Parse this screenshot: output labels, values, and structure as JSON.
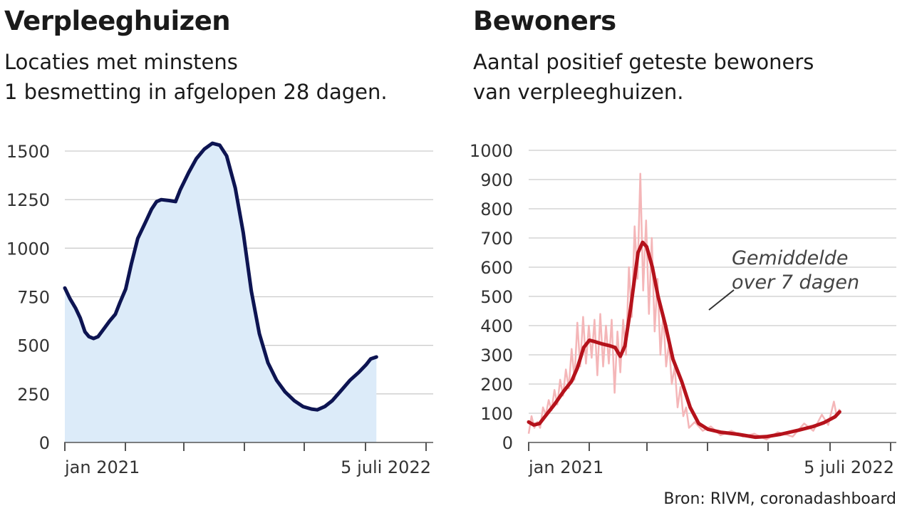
{
  "left": {
    "title": "Verpleeghuizen",
    "subtitle": "Locaties met minstens\n1 besmetting in afgelopen 28 dagen."
  },
  "right": {
    "title": "Bewoners",
    "subtitle": "Aantal positief geteste bewoners\nvan verpleeghuizen."
  },
  "source": "Bron: RIVM, coronadashboard",
  "colors": {
    "left_line": "#0d1452",
    "left_fill": "#dcebf9",
    "right_avg": "#b5121b",
    "right_daily": "#f4b6b8",
    "grid": "#cccccc"
  },
  "chart_data": [
    {
      "type": "area",
      "x_start": "2020-10-01",
      "x_end": "2022-07-05",
      "x_tick_labels": [
        "jan 2021",
        "5 juli 2022"
      ],
      "yticks": [
        0,
        250,
        500,
        750,
        1000,
        1250,
        1500
      ],
      "ylim": [
        0,
        1500
      ],
      "series": [
        {
          "values": [
            [
              "2020-10-01",
              795
            ],
            [
              "2020-10-10",
              740
            ],
            [
              "2020-10-20",
              690
            ],
            [
              "2020-10-28",
              640
            ],
            [
              "2020-11-05",
              570
            ],
            [
              "2020-11-12",
              545
            ],
            [
              "2020-11-20",
              535
            ],
            [
              "2020-11-28",
              545
            ],
            [
              "2020-12-08",
              585
            ],
            [
              "2020-12-18",
              625
            ],
            [
              "2020-12-28",
              660
            ],
            [
              "2021-01-05",
              720
            ],
            [
              "2021-01-15",
              790
            ],
            [
              "2021-01-25",
              920
            ],
            [
              "2021-02-05",
              1050
            ],
            [
              "2021-02-18",
              1130
            ],
            [
              "2021-03-01",
              1200
            ],
            [
              "2021-03-10",
              1240
            ],
            [
              "2021-03-18",
              1250
            ],
            [
              "2021-04-01",
              1245
            ],
            [
              "2021-04-12",
              1240
            ],
            [
              "2021-04-20",
              1300
            ],
            [
              "2021-05-05",
              1390
            ],
            [
              "2021-05-18",
              1460
            ],
            [
              "2021-06-01",
              1510
            ],
            [
              "2021-06-15",
              1540
            ],
            [
              "2021-06-28",
              1530
            ],
            [
              "2021-07-10",
              1475
            ],
            [
              "2021-07-25",
              1310
            ],
            [
              "2021-08-08",
              1080
            ],
            [
              "2021-08-22",
              780
            ],
            [
              "2021-09-05",
              560
            ],
            [
              "2021-09-20",
              410
            ],
            [
              "2021-10-05",
              320
            ],
            [
              "2021-10-20",
              260
            ],
            [
              "2021-11-05",
              215
            ],
            [
              "2021-11-20",
              185
            ],
            [
              "2021-12-05",
              172
            ],
            [
              "2021-12-15",
              168
            ],
            [
              "2021-12-28",
              185
            ],
            [
              "2022-01-10",
              215
            ],
            [
              "2022-01-25",
              265
            ],
            [
              "2022-02-10",
              320
            ],
            [
              "2022-02-25",
              360
            ],
            [
              "2022-03-10",
              400
            ],
            [
              "2022-03-18",
              430
            ],
            [
              "2022-03-28",
              440
            ]
          ]
        }
      ]
    },
    {
      "type": "line",
      "x_start": "2020-10-01",
      "x_end": "2022-07-05",
      "x_tick_labels": [
        "jan 2021",
        "5 juli 2022"
      ],
      "yticks": [
        0,
        100,
        200,
        300,
        400,
        500,
        600,
        700,
        800,
        900,
        1000
      ],
      "ylim": [
        0,
        1000
      ],
      "annotation": "Gemiddelde\nover 7 dagen",
      "series": [
        {
          "role": "average",
          "values": [
            [
              "2020-10-01",
              70
            ],
            [
              "2020-10-10",
              60
            ],
            [
              "2020-10-20",
              65
            ],
            [
              "2020-11-01",
              95
            ],
            [
              "2020-11-15",
              130
            ],
            [
              "2020-12-01",
              175
            ],
            [
              "2020-12-15",
              210
            ],
            [
              "2020-12-25",
              255
            ],
            [
              "2021-01-05",
              325
            ],
            [
              "2021-01-15",
              350
            ],
            [
              "2021-01-25",
              345
            ],
            [
              "2021-02-05",
              338
            ],
            [
              "2021-02-18",
              332
            ],
            [
              "2021-03-01",
              325
            ],
            [
              "2021-03-10",
              295
            ],
            [
              "2021-03-18",
              330
            ],
            [
              "2021-03-28",
              460
            ],
            [
              "2021-04-10",
              650
            ],
            [
              "2021-04-18",
              685
            ],
            [
              "2021-04-25",
              670
            ],
            [
              "2021-05-05",
              600
            ],
            [
              "2021-05-15",
              500
            ],
            [
              "2021-05-28",
              400
            ],
            [
              "2021-06-10",
              285
            ],
            [
              "2021-06-25",
              210
            ],
            [
              "2021-07-10",
              120
            ],
            [
              "2021-07-25",
              65
            ],
            [
              "2021-08-10",
              45
            ],
            [
              "2021-09-01",
              35
            ],
            [
              "2021-10-01",
              28
            ],
            [
              "2021-11-01",
              18
            ],
            [
              "2021-11-20",
              20
            ],
            [
              "2021-12-15",
              28
            ],
            [
              "2022-01-15",
              42
            ],
            [
              "2022-02-10",
              55
            ],
            [
              "2022-03-01",
              68
            ],
            [
              "2022-03-20",
              88
            ],
            [
              "2022-03-28",
              105
            ]
          ]
        },
        {
          "role": "daily",
          "values": [
            [
              "2020-10-01",
              30
            ],
            [
              "2020-10-06",
              90
            ],
            [
              "2020-10-11",
              50
            ],
            [
              "2020-10-16",
              70
            ],
            [
              "2020-10-21",
              50
            ],
            [
              "2020-10-26",
              120
            ],
            [
              "2020-10-31",
              95
            ],
            [
              "2020-11-05",
              145
            ],
            [
              "2020-11-10",
              110
            ],
            [
              "2020-11-15",
              180
            ],
            [
              "2020-11-20",
              130
            ],
            [
              "2020-11-25",
              215
            ],
            [
              "2020-11-30",
              160
            ],
            [
              "2020-12-05",
              250
            ],
            [
              "2020-12-10",
              185
            ],
            [
              "2020-12-15",
              320
            ],
            [
              "2020-12-20",
              215
            ],
            [
              "2020-12-25",
              410
            ],
            [
              "2020-12-30",
              260
            ],
            [
              "2021-01-04",
              430
            ],
            [
              "2021-01-09",
              270
            ],
            [
              "2021-01-14",
              400
            ],
            [
              "2021-01-19",
              290
            ],
            [
              "2021-01-24",
              420
            ],
            [
              "2021-01-29",
              230
            ],
            [
              "2021-02-03",
              440
            ],
            [
              "2021-02-08",
              260
            ],
            [
              "2021-02-13",
              400
            ],
            [
              "2021-02-18",
              270
            ],
            [
              "2021-02-23",
              420
            ],
            [
              "2021-02-28",
              170
            ],
            [
              "2021-03-05",
              380
            ],
            [
              "2021-03-10",
              240
            ],
            [
              "2021-03-15",
              420
            ],
            [
              "2021-03-20",
              300
            ],
            [
              "2021-03-25",
              600
            ],
            [
              "2021-03-30",
              430
            ],
            [
              "2021-04-04",
              740
            ],
            [
              "2021-04-09",
              560
            ],
            [
              "2021-04-14",
              920
            ],
            [
              "2021-04-19",
              520
            ],
            [
              "2021-04-24",
              760
            ],
            [
              "2021-04-29",
              440
            ],
            [
              "2021-05-04",
              700
            ],
            [
              "2021-05-09",
              380
            ],
            [
              "2021-05-14",
              560
            ],
            [
              "2021-05-19",
              300
            ],
            [
              "2021-05-24",
              440
            ],
            [
              "2021-05-29",
              260
            ],
            [
              "2021-06-03",
              340
            ],
            [
              "2021-06-08",
              200
            ],
            [
              "2021-06-13",
              260
            ],
            [
              "2021-06-18",
              120
            ],
            [
              "2021-06-23",
              190
            ],
            [
              "2021-06-28",
              90
            ],
            [
              "2021-07-03",
              120
            ],
            [
              "2021-07-08",
              50
            ],
            [
              "2021-07-18",
              70
            ],
            [
              "2021-08-01",
              40
            ],
            [
              "2021-08-15",
              55
            ],
            [
              "2021-09-01",
              25
            ],
            [
              "2021-09-20",
              40
            ],
            [
              "2021-10-10",
              20
            ],
            [
              "2021-10-30",
              30
            ],
            [
              "2021-11-20",
              10
            ],
            [
              "2021-12-10",
              35
            ],
            [
              "2022-01-05",
              20
            ],
            [
              "2022-01-25",
              65
            ],
            [
              "2022-02-10",
              40
            ],
            [
              "2022-02-25",
              95
            ],
            [
              "2022-03-08",
              60
            ],
            [
              "2022-03-18",
              140
            ],
            [
              "2022-03-23",
              90
            ],
            [
              "2022-03-28",
              115
            ]
          ]
        }
      ]
    }
  ]
}
